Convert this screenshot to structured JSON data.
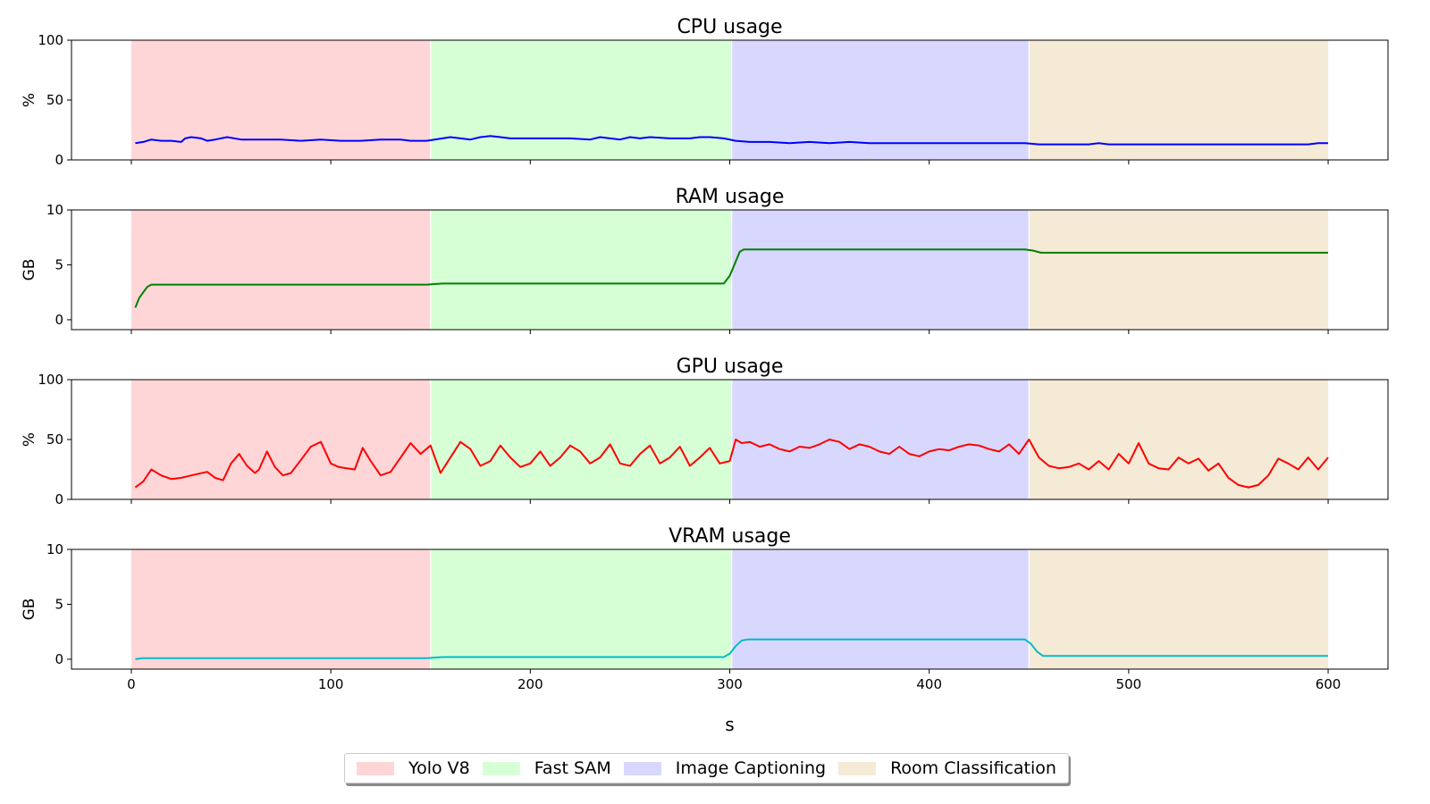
{
  "chart_data": {
    "type": "line",
    "xlabel": "s",
    "x_ticks": [
      0,
      100,
      200,
      300,
      400,
      500,
      600
    ],
    "xlim": [
      -30,
      630
    ],
    "phases": [
      {
        "name": "Yolo V8",
        "start": 0,
        "end": 150,
        "color": "#ffd6d8"
      },
      {
        "name": "Fast SAM",
        "start": 150,
        "end": 301,
        "color": "#d7ffd6"
      },
      {
        "name": "Image Captioning",
        "start": 301,
        "end": 450,
        "color": "#d8d8ff"
      },
      {
        "name": "Room Classification",
        "start": 450,
        "end": 600,
        "color": "#f5ead6"
      }
    ],
    "panels": [
      {
        "title": "CPU usage",
        "ylabel": "%",
        "ylim": [
          0,
          100
        ],
        "y_ticks": [
          0,
          50,
          100
        ],
        "color": "#0000ff",
        "x": [
          2,
          6,
          10,
          15,
          20,
          25,
          27,
          30,
          35,
          38,
          42,
          48,
          55,
          65,
          75,
          85,
          95,
          105,
          115,
          125,
          135,
          140,
          148,
          152,
          156,
          160,
          165,
          170,
          175,
          180,
          185,
          190,
          200,
          210,
          220,
          230,
          235,
          240,
          245,
          250,
          255,
          260,
          270,
          280,
          285,
          290,
          297,
          303,
          310,
          320,
          330,
          340,
          350,
          360,
          370,
          380,
          390,
          400,
          410,
          420,
          430,
          440,
          448,
          455,
          460,
          470,
          480,
          485,
          490,
          500,
          510,
          520,
          530,
          540,
          550,
          560,
          570,
          580,
          590,
          595,
          600
        ],
        "y": [
          14,
          15,
          17,
          16,
          16,
          15,
          18,
          19,
          18,
          16,
          17,
          19,
          17,
          17,
          17,
          16,
          17,
          16,
          16,
          17,
          17,
          16,
          16,
          17,
          18,
          19,
          18,
          17,
          19,
          20,
          19,
          18,
          18,
          18,
          18,
          17,
          19,
          18,
          17,
          19,
          18,
          19,
          18,
          18,
          19,
          19,
          18,
          16,
          15,
          15,
          14,
          15,
          14,
          15,
          14,
          14,
          14,
          14,
          14,
          14,
          14,
          14,
          14,
          13,
          13,
          13,
          13,
          14,
          13,
          13,
          13,
          13,
          13,
          13,
          13,
          13,
          13,
          13,
          13,
          14,
          14
        ]
      },
      {
        "title": "RAM usage",
        "ylabel": "GB",
        "ylim": [
          -0.9,
          10
        ],
        "y_ticks": [
          0,
          5,
          10
        ],
        "color": "#008000",
        "x": [
          2,
          4,
          6,
          8,
          10,
          30,
          100,
          148,
          152,
          156,
          200,
          297,
          300,
          303,
          305,
          307,
          310,
          350,
          400,
          448,
          452,
          456,
          460,
          500,
          550,
          600
        ],
        "y": [
          1.1,
          2.0,
          2.5,
          3.0,
          3.2,
          3.2,
          3.2,
          3.2,
          3.25,
          3.3,
          3.3,
          3.3,
          4.0,
          5.3,
          6.2,
          6.4,
          6.4,
          6.4,
          6.4,
          6.4,
          6.3,
          6.1,
          6.1,
          6.1,
          6.1,
          6.1
        ]
      },
      {
        "title": "GPU usage",
        "ylabel": "%",
        "ylim": [
          0,
          100
        ],
        "y_ticks": [
          0,
          50,
          100
        ],
        "color": "#ff0000",
        "x": [
          2,
          6,
          10,
          15,
          20,
          25,
          30,
          38,
          42,
          46,
          50,
          54,
          58,
          62,
          64,
          68,
          72,
          76,
          80,
          85,
          90,
          95,
          100,
          104,
          108,
          112,
          116,
          120,
          125,
          130,
          135,
          140,
          145,
          150,
          155,
          160,
          165,
          170,
          175,
          180,
          185,
          190,
          195,
          200,
          205,
          210,
          215,
          220,
          225,
          230,
          235,
          240,
          245,
          250,
          255,
          260,
          265,
          270,
          275,
          280,
          285,
          290,
          295,
          300,
          303,
          306,
          310,
          315,
          320,
          325,
          330,
          335,
          340,
          345,
          350,
          355,
          360,
          365,
          370,
          375,
          380,
          385,
          390,
          395,
          400,
          405,
          410,
          415,
          420,
          425,
          430,
          435,
          440,
          445,
          450,
          455,
          460,
          465,
          470,
          475,
          480,
          485,
          490,
          495,
          500,
          505,
          510,
          515,
          520,
          525,
          530,
          535,
          540,
          545,
          550,
          555,
          560,
          565,
          570,
          575,
          580,
          585,
          590,
          595,
          600
        ],
        "y": [
          10,
          15,
          25,
          20,
          17,
          18,
          20,
          23,
          18,
          16,
          30,
          38,
          28,
          22,
          25,
          40,
          27,
          20,
          22,
          33,
          44,
          48,
          30,
          27,
          26,
          25,
          43,
          32,
          20,
          23,
          35,
          47,
          38,
          45,
          22,
          35,
          48,
          42,
          28,
          32,
          45,
          35,
          27,
          30,
          40,
          28,
          35,
          45,
          40,
          30,
          35,
          46,
          30,
          28,
          38,
          45,
          30,
          35,
          44,
          28,
          35,
          43,
          30,
          32,
          50,
          47,
          48,
          44,
          46,
          42,
          40,
          44,
          43,
          46,
          50,
          48,
          42,
          46,
          44,
          40,
          38,
          44,
          38,
          36,
          40,
          42,
          41,
          44,
          46,
          45,
          42,
          40,
          46,
          38,
          50,
          35,
          28,
          26,
          27,
          30,
          25,
          32,
          25,
          38,
          30,
          47,
          30,
          26,
          25,
          35,
          30,
          34,
          24,
          30,
          18,
          12,
          10,
          12,
          20,
          34,
          30,
          25,
          35,
          25,
          35
        ]
      },
      {
        "title": "VRAM usage",
        "ylabel": "GB",
        "ylim": [
          -0.9,
          10
        ],
        "y_ticks": [
          0,
          5,
          10
        ],
        "color": "#00bcc8",
        "x": [
          2,
          4,
          6,
          50,
          100,
          148,
          152,
          156,
          200,
          250,
          297,
          300,
          303,
          306,
          309,
          350,
          400,
          448,
          451,
          454,
          457,
          460,
          500,
          550,
          600
        ],
        "y": [
          0.0,
          0.05,
          0.1,
          0.1,
          0.1,
          0.1,
          0.15,
          0.2,
          0.2,
          0.2,
          0.2,
          0.5,
          1.2,
          1.7,
          1.8,
          1.8,
          1.8,
          1.8,
          1.4,
          0.7,
          0.3,
          0.3,
          0.3,
          0.3,
          0.3
        ]
      }
    ]
  }
}
